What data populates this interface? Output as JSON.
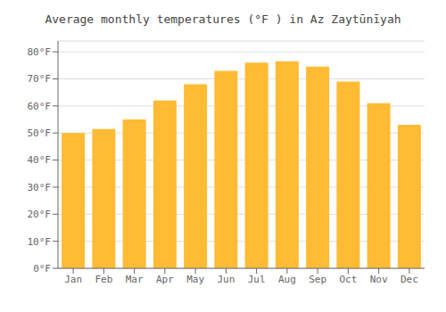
{
  "chart_data": {
    "type": "bar",
    "title": "Average monthly temperatures (°F ) in Az Zaytūnīyah",
    "categories": [
      "Jan",
      "Feb",
      "Mar",
      "Apr",
      "May",
      "Jun",
      "Jul",
      "Aug",
      "Sep",
      "Oct",
      "Nov",
      "Dec"
    ],
    "values": [
      50,
      51.5,
      55,
      62,
      68,
      73,
      76,
      76.5,
      74.5,
      69,
      61,
      53
    ],
    "color": "#FFBB33",
    "ylim": [
      0,
      84
    ],
    "yticks": [
      {
        "value": 0,
        "label": "0°F"
      },
      {
        "value": 10,
        "label": "10°F"
      },
      {
        "value": 20,
        "label": "20°F"
      },
      {
        "value": 30,
        "label": "30°F"
      },
      {
        "value": 40,
        "label": "40°F"
      },
      {
        "value": 50,
        "label": "50°F"
      },
      {
        "value": 60,
        "label": "60°F"
      },
      {
        "value": 70,
        "label": "70°F"
      },
      {
        "value": 80,
        "label": "80°F"
      }
    ],
    "grid": true
  }
}
